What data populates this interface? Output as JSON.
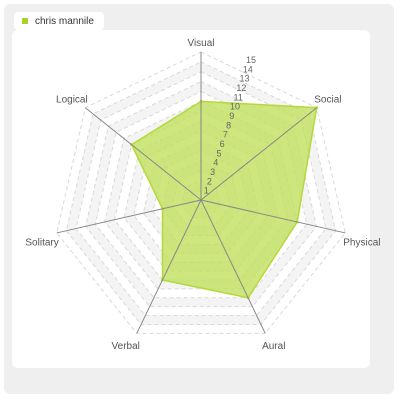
{
  "legend": {
    "series_name": "chris mannile"
  },
  "colors": {
    "series_fill": "#c0e05c",
    "series_stroke": "#b4d93c",
    "legend_swatch": "#a8d22e",
    "axis": "#888888",
    "grid": "#d8d8d8",
    "band": "#f4f4f4"
  },
  "chart_data": {
    "type": "radar",
    "categories": [
      "Visual",
      "Social",
      "Physical",
      "Aural",
      "Verbal",
      "Solitary",
      "Logical"
    ],
    "series": [
      {
        "name": "chris mannile",
        "values": [
          10,
          15,
          10,
          11,
          9,
          4,
          9
        ]
      }
    ],
    "ticks": [
      "1",
      "2",
      "3",
      "4",
      "5",
      "6",
      "7",
      "8",
      "9",
      "10",
      "11",
      "12",
      "13",
      "14",
      "15"
    ],
    "rmin": 0,
    "rmax": 15,
    "grid": true,
    "legend_position": "top-left"
  }
}
